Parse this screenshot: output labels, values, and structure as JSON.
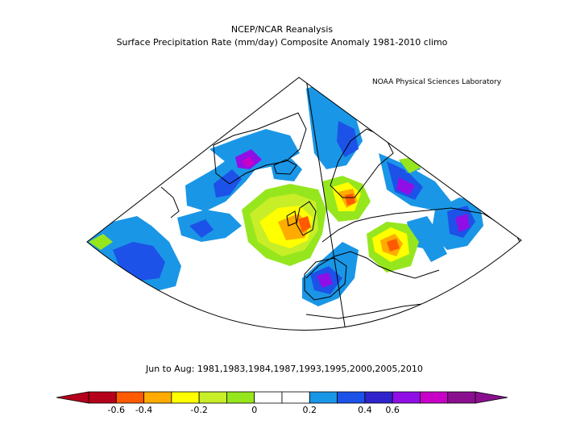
{
  "header": {
    "title": "NCEP/NCAR Reanalysis",
    "subtitle": "Surface Precipitation Rate (mm/day) Composite Anomaly 1981-2010 climo",
    "credit": "NOAA Physical Sciences Laboratory"
  },
  "subset": "Jun to Aug: 1981,1983,1984,1987,1993,1995,2000,2005,2010",
  "colorbar": {
    "ticks": [
      "-0.6",
      "-0.4",
      "-0.2",
      "0",
      "0.2",
      "0.4",
      "0.6"
    ],
    "colors": [
      "#b5001c",
      "#ff5a00",
      "#ffab00",
      "#ffff00",
      "#c8ee28",
      "#96e61e",
      "#ffffff",
      "#ffffff",
      "#1a96e6",
      "#1c52e8",
      "#3023cc",
      "#8f0fe6",
      "#c800c8",
      "#8a0f8f"
    ]
  },
  "map": {
    "region": "North Atlantic / Europe",
    "anomaly_colors": {
      "strong_negative": "#ff5a00",
      "negative": "#ffab00",
      "weak_negative": "#ffff00",
      "slight_negative": "#96e61e",
      "slight_positive": "#1a96e6",
      "positive": "#1c52e8",
      "strong_positive": "#8f0fe6",
      "very_strong_positive": "#c800c8"
    }
  }
}
